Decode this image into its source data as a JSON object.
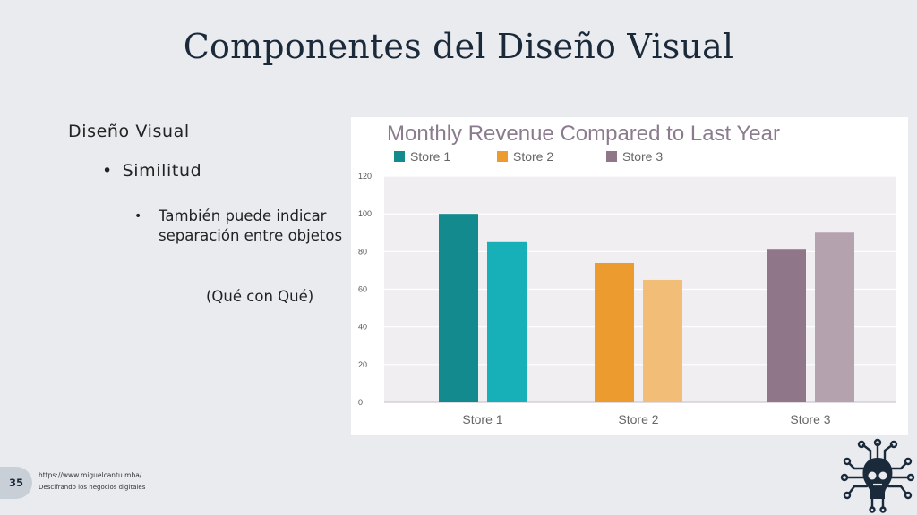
{
  "slide": {
    "title": "Componentes del Diseño Visual",
    "heading": "Diseño Visual",
    "bullet1": "Similitud",
    "bullet2": "También puede indicar separación entre objetos",
    "note": "(Qué con Qué)",
    "bullet_glyph": "•",
    "page_number": "35",
    "footer_url": "https://www.miguelcantu.mba/",
    "footer_tagline": "Descifrando los negocios digitales",
    "logo_icon": "bulb-circuit-robot-icon"
  },
  "chart_data": {
    "type": "bar",
    "title": "Monthly Revenue Compared to Last Year",
    "categories": [
      "Store 1",
      "Store 2",
      "Store 3"
    ],
    "legend": [
      "Store 1",
      "Store 2",
      "Store 3"
    ],
    "legend_colors": [
      "#138a8e",
      "#ec9b2e",
      "#8f7789"
    ],
    "bars": [
      {
        "category": "Store 1",
        "values": [
          100,
          85
        ],
        "colors": [
          "#138a8e",
          "#17b0b8"
        ]
      },
      {
        "category": "Store 2",
        "values": [
          74,
          65
        ],
        "colors": [
          "#ec9b2e",
          "#f2be77"
        ]
      },
      {
        "category": "Store 3",
        "values": [
          81,
          90
        ],
        "colors": [
          "#8f7789",
          "#b4a3ae"
        ]
      }
    ],
    "ylim": [
      0,
      120
    ],
    "yticks": [
      0,
      20,
      40,
      60,
      80,
      100,
      120
    ],
    "grid": true,
    "legend_position": "top-left"
  }
}
